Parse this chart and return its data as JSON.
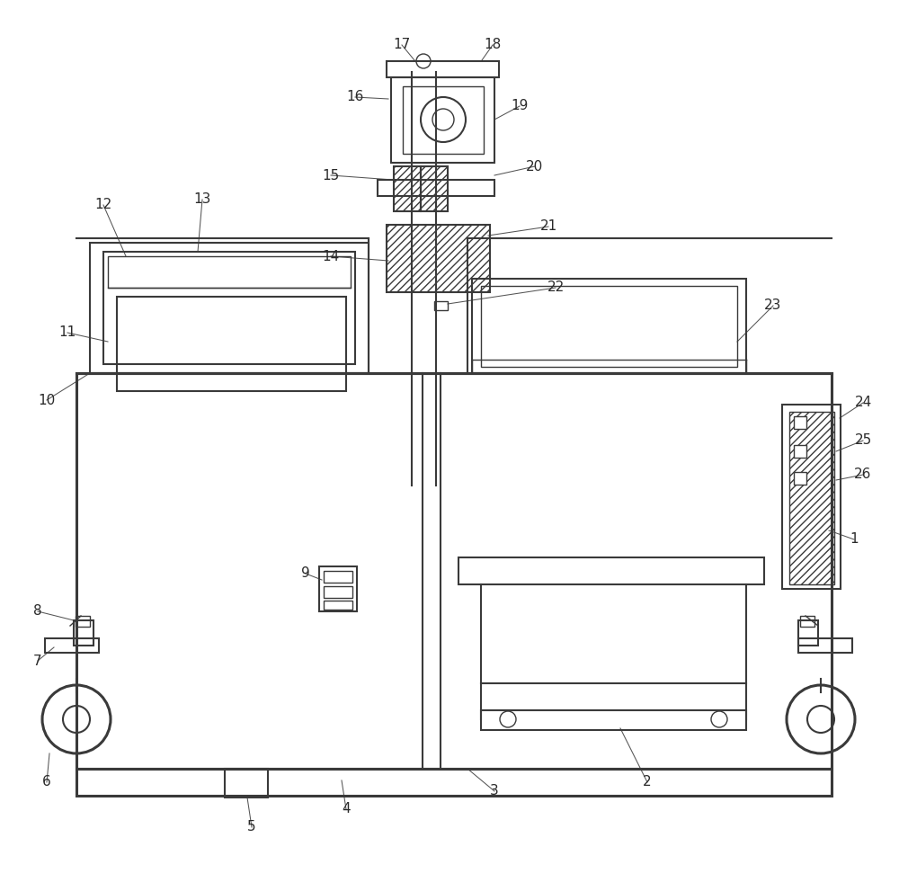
{
  "bg_color": "#ffffff",
  "lc": "#3a3a3a",
  "lc2": "#555555",
  "lw_heavy": 2.2,
  "lw_med": 1.5,
  "lw_thin": 1.0,
  "lw_vt": 0.8,
  "fig_w": 10.0,
  "fig_h": 9.71,
  "dpi": 100
}
